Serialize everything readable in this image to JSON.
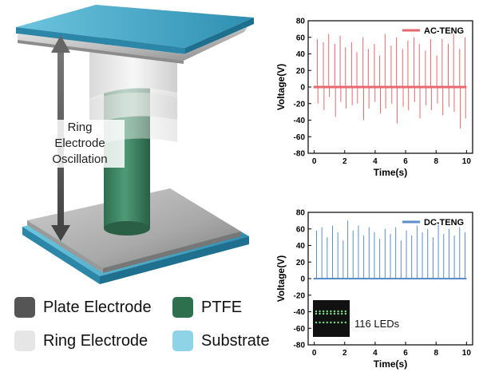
{
  "figure": {
    "oscillation_label": [
      "Ring",
      "Electrode",
      "Oscillation"
    ],
    "legend": [
      {
        "label": "Plate Electrode",
        "color": "#555555"
      },
      {
        "label": "PTFE",
        "color": "#2e6f4e"
      },
      {
        "label": "Ring Electrode",
        "color": "#e6e6e6"
      },
      {
        "label": "Substrate",
        "color": "#8fd3e6"
      }
    ],
    "inset_label": "116 LEDs"
  },
  "chart_data": [
    {
      "type": "line",
      "legend": "AC-TENG",
      "color": "#e8686e",
      "xlabel": "Time(s)",
      "ylabel": "Voltage(V)",
      "xlim": [
        -0.4,
        10.4
      ],
      "ylim": [
        -80,
        80
      ],
      "xticks": [
        "0",
        "2",
        "4",
        "6",
        "8",
        "10"
      ],
      "yticks": [
        "-80",
        "-60",
        "-40",
        "-20",
        "0",
        "20",
        "40",
        "60",
        "80"
      ],
      "peaks": {
        "t": [
          0.2,
          0.6,
          0.95,
          1.35,
          1.7,
          2.05,
          2.45,
          2.8,
          3.2,
          3.55,
          3.95,
          4.3,
          4.65,
          5.05,
          5.4,
          5.8,
          6.15,
          6.55,
          6.9,
          7.3,
          7.65,
          8.05,
          8.4,
          8.8,
          9.15,
          9.55,
          9.9
        ],
        "pos": [
          58,
          54,
          64,
          52,
          62,
          48,
          54,
          42,
          60,
          46,
          52,
          38,
          64,
          50,
          60,
          46,
          56,
          60,
          52,
          44,
          58,
          38,
          58,
          52,
          64,
          46,
          60
        ],
        "neg": [
          -20,
          -28,
          -12,
          -36,
          -18,
          -26,
          -22,
          -20,
          -40,
          -26,
          -18,
          -32,
          -26,
          -20,
          -44,
          -24,
          -28,
          -18,
          -38,
          -22,
          -28,
          -20,
          -34,
          -24,
          -30,
          -50,
          -38
        ]
      }
    },
    {
      "type": "line",
      "legend": "DC-TENG",
      "color": "#5b8dc9",
      "xlabel": "Time(s)",
      "ylabel": "Voltage(V)",
      "xlim": [
        -0.4,
        10.4
      ],
      "ylim": [
        -80,
        80
      ],
      "xticks": [
        "0",
        "2",
        "4",
        "6",
        "8",
        "10"
      ],
      "yticks": [
        "-80",
        "-60",
        "-40",
        "-20",
        "0",
        "20",
        "40",
        "60",
        "80"
      ],
      "peaks": {
        "t": [
          0.15,
          0.5,
          0.85,
          1.2,
          1.55,
          1.9,
          2.2,
          2.55,
          2.9,
          3.25,
          3.6,
          3.95,
          4.3,
          4.65,
          5.0,
          5.35,
          5.7,
          6.05,
          6.4,
          6.75,
          7.1,
          7.45,
          7.8,
          8.15,
          8.5,
          8.85,
          9.2,
          9.55,
          9.9
        ],
        "pos": [
          58,
          62,
          50,
          64,
          56,
          46,
          70,
          58,
          64,
          52,
          62,
          56,
          48,
          60,
          54,
          62,
          46,
          58,
          52,
          64,
          56,
          60,
          50,
          66,
          54,
          60,
          52,
          62,
          56
        ]
      }
    }
  ]
}
